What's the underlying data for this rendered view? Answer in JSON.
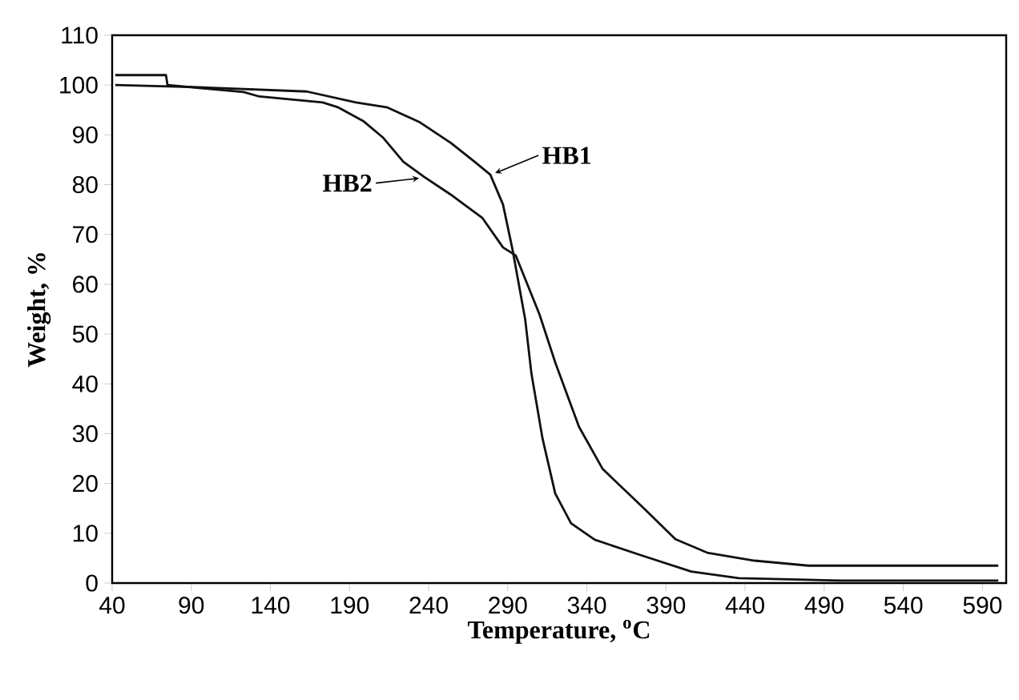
{
  "chart_data": {
    "type": "line",
    "xlabel": "Temperature, $^{o}$C",
    "ylabel": "Weight, %",
    "xlim": [
      40,
      605
    ],
    "xticks": [
      40,
      90,
      140,
      190,
      240,
      290,
      340,
      390,
      440,
      490,
      540,
      590
    ],
    "ylim": [
      0,
      110
    ],
    "yticks": [
      0,
      10,
      20,
      30,
      40,
      50,
      60,
      70,
      80,
      90,
      100,
      110
    ],
    "grid": false,
    "legend": false,
    "marker": "none",
    "line_style": "solid",
    "series": [
      {
        "name": "HB1",
        "color": "#111111",
        "x": [
          42,
          100,
          163,
          194,
          214,
          234,
          254,
          269,
          279,
          287,
          293,
          301,
          305,
          312,
          320,
          330,
          345,
          375,
          406,
          436,
          500,
          600
        ],
        "values": [
          100,
          99.5,
          98.7,
          96.5,
          95.5,
          92.6,
          88.4,
          84.6,
          82,
          76,
          67,
          53,
          42,
          29,
          18,
          12,
          8.7,
          5.5,
          2.3,
          1,
          0.5,
          0.5
        ]
      },
      {
        "name": "HB2",
        "color": "#111111",
        "x": [
          42,
          74,
          75,
          123,
          133,
          173,
          183,
          199,
          211,
          224,
          237,
          254,
          274,
          287,
          295,
          310,
          320,
          335,
          350,
          375,
          396,
          416,
          446,
          480,
          600
        ],
        "values": [
          102,
          102,
          100,
          98.6,
          97.7,
          96.5,
          95.5,
          92.7,
          89.5,
          84.6,
          81.6,
          78,
          73.3,
          67.4,
          65.8,
          54,
          44.3,
          31.4,
          22.9,
          15.3,
          8.8,
          6.1,
          4.5,
          3.5,
          3.5
        ]
      }
    ]
  }
}
